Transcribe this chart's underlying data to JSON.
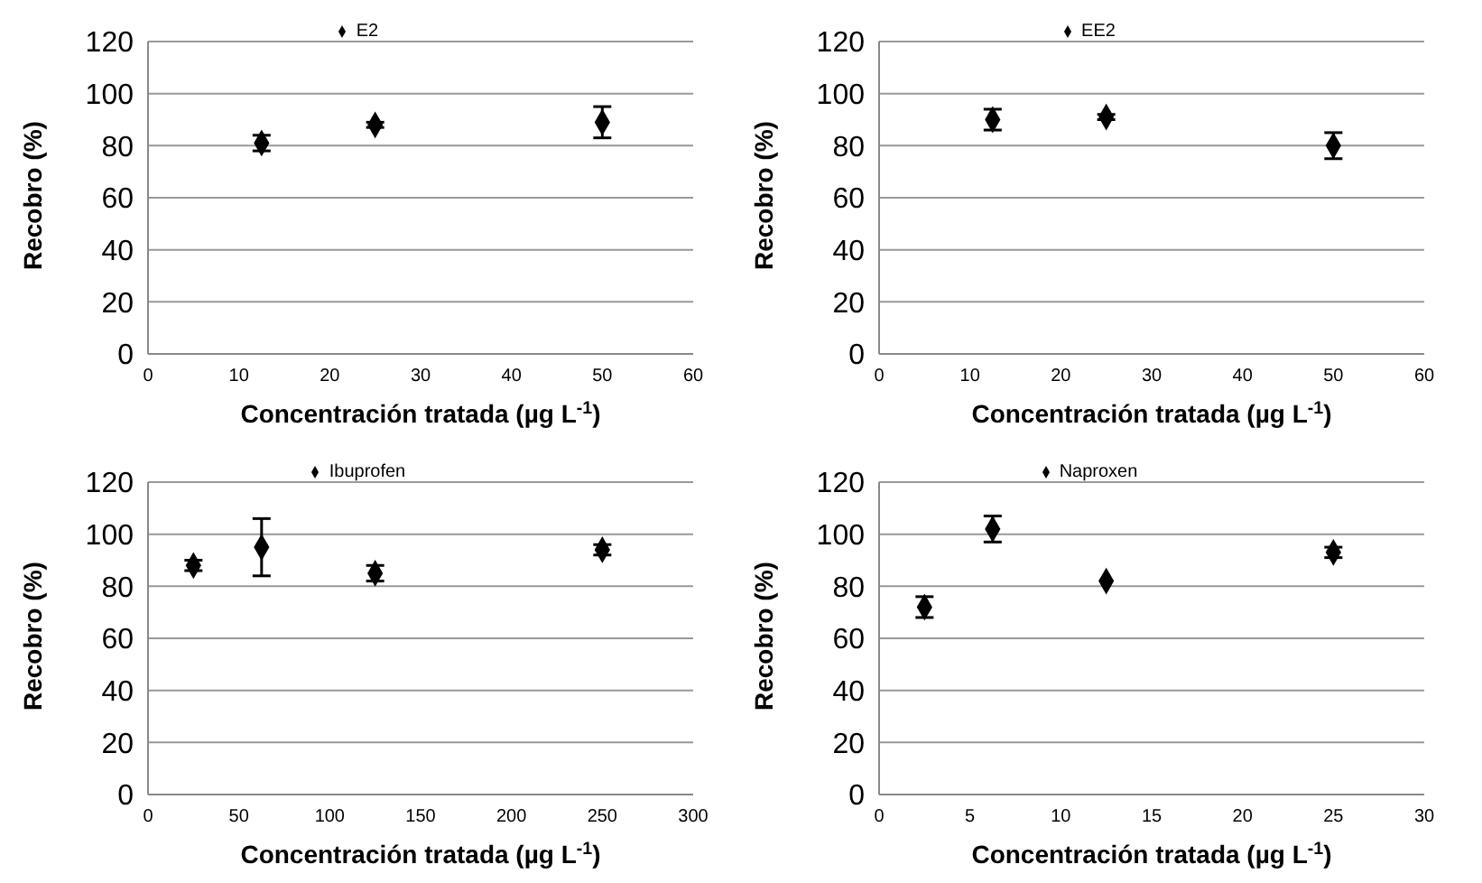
{
  "chart_data": [
    {
      "type": "scatter",
      "xlabel": "Concentración tratada (µg L$^{-1}$)",
      "ylabel": "Recobro (%)",
      "xlim": [
        0,
        60
      ],
      "xticks": [
        0,
        10,
        20,
        30,
        40,
        50,
        60
      ],
      "ylim": [
        0,
        120
      ],
      "yticks": [
        0,
        20,
        40,
        60,
        80,
        100,
        120
      ],
      "grid": "y",
      "legend": "top",
      "marker": "diamond",
      "x": [
        12.5,
        25,
        50
      ],
      "series": [
        {
          "name": "E2",
          "color": "#000000",
          "values": [
            81,
            88,
            89
          ],
          "errors": [
            3,
            1,
            6
          ]
        }
      ]
    },
    {
      "type": "scatter",
      "xlabel": "Concentración tratada (µg L$^{-1}$)",
      "ylabel": "Recobro (%)",
      "xlim": [
        0,
        60
      ],
      "xticks": [
        0,
        10,
        20,
        30,
        40,
        50,
        60
      ],
      "ylim": [
        0,
        120
      ],
      "yticks": [
        0,
        20,
        40,
        60,
        80,
        100,
        120
      ],
      "grid": "y",
      "legend": "top",
      "marker": "diamond",
      "x": [
        12.5,
        25,
        50
      ],
      "series": [
        {
          "name": "EE2",
          "color": "#000000",
          "values": [
            90,
            91,
            80
          ],
          "errors": [
            4,
            1,
            5
          ]
        }
      ]
    },
    {
      "type": "scatter",
      "xlabel": "Concentración tratada (µg L$^{-1}$)",
      "ylabel": "Recobro (%)",
      "xlim": [
        0,
        300
      ],
      "xticks": [
        0,
        50,
        100,
        150,
        200,
        250,
        300
      ],
      "ylim": [
        0,
        120
      ],
      "yticks": [
        0,
        20,
        40,
        60,
        80,
        100,
        120
      ],
      "grid": "y",
      "legend": "top",
      "marker": "diamond",
      "x": [
        25,
        62.5,
        125,
        250
      ],
      "series": [
        {
          "name": "Ibuprofen",
          "color": "#000000",
          "values": [
            88,
            95,
            85,
            94
          ],
          "errors": [
            2,
            11,
            3,
            2
          ]
        }
      ]
    },
    {
      "type": "scatter",
      "xlabel": "Concentración tratada (µg L$^{-1}$)",
      "ylabel": "Recobro (%)",
      "xlim": [
        0,
        30
      ],
      "xticks": [
        0,
        5,
        10,
        15,
        20,
        25,
        30
      ],
      "ylim": [
        0,
        120
      ],
      "yticks": [
        0,
        20,
        40,
        60,
        80,
        100,
        120
      ],
      "grid": "y",
      "legend": "top",
      "marker": "diamond",
      "x": [
        2.5,
        6.25,
        12.5,
        25
      ],
      "series": [
        {
          "name": "Naproxen",
          "color": "#000000",
          "values": [
            72,
            102,
            82,
            93
          ],
          "errors": [
            4,
            5,
            null,
            2
          ]
        }
      ]
    }
  ]
}
